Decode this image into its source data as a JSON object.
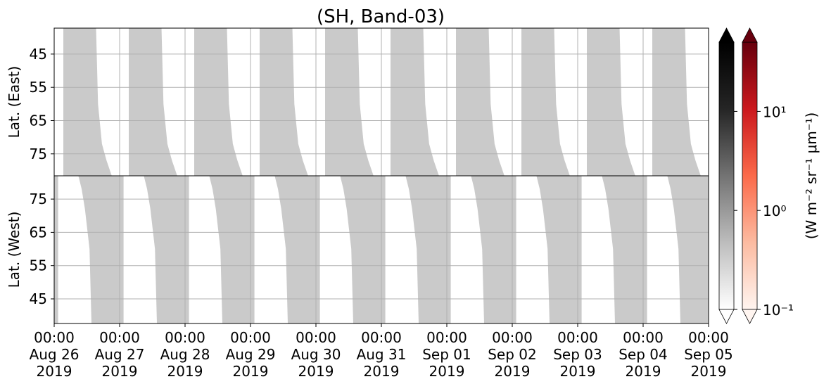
{
  "chart_data": {
    "type": "heatmap",
    "title": "(SH, Band-03)",
    "xlim": [
      0,
      10
    ],
    "xticks": [
      {
        "value": 0,
        "label": "00:00\nAug 26\n2019"
      },
      {
        "value": 1,
        "label": "00:00\nAug 27\n2019"
      },
      {
        "value": 2,
        "label": "00:00\nAug 28\n2019"
      },
      {
        "value": 3,
        "label": "00:00\nAug 29\n2019"
      },
      {
        "value": 4,
        "label": "00:00\nAug 30\n2019"
      },
      {
        "value": 5,
        "label": "00:00\nAug 31\n2019"
      },
      {
        "value": 6,
        "label": "00:00\nSep 01\n2019"
      },
      {
        "value": 7,
        "label": "00:00\nSep 02\n2019"
      },
      {
        "value": 8,
        "label": "00:00\nSep 03\n2019"
      },
      {
        "value": 9,
        "label": "00:00\nSep 04\n2019"
      },
      {
        "value": 10,
        "label": "00:00\nSep 05\n2019"
      }
    ],
    "grid": true,
    "panels": [
      {
        "ylabel": "Lat. (East)",
        "ylim": [
          37.2,
          81.6
        ],
        "yticks": [
          45,
          55,
          65,
          75
        ],
        "color": "#cacaca",
        "lat": [
          37.2,
          60,
          72,
          77,
          81.6
        ],
        "swaths": [
          {
            "left": [
              0.14,
              0.14,
              0.14,
              0.14,
              0.14
            ],
            "right": [
              0.64,
              0.67,
              0.73,
              0.8,
              0.88
            ]
          },
          {
            "left": [
              1.14,
              1.14,
              1.14,
              1.14,
              1.14
            ],
            "right": [
              1.64,
              1.67,
              1.73,
              1.8,
              1.88
            ]
          },
          {
            "left": [
              2.14,
              2.14,
              2.14,
              2.14,
              2.14
            ],
            "right": [
              2.64,
              2.67,
              2.73,
              2.8,
              2.88
            ]
          },
          {
            "left": [
              3.14,
              3.14,
              3.14,
              3.14,
              3.14
            ],
            "right": [
              3.64,
              3.67,
              3.73,
              3.8,
              3.88
            ]
          },
          {
            "left": [
              4.14,
              4.14,
              4.14,
              4.14,
              4.14
            ],
            "right": [
              4.64,
              4.67,
              4.73,
              4.8,
              4.88
            ]
          },
          {
            "left": [
              5.14,
              5.14,
              5.14,
              5.14,
              5.14
            ],
            "right": [
              5.64,
              5.67,
              5.73,
              5.8,
              5.88
            ]
          },
          {
            "left": [
              6.14,
              6.14,
              6.14,
              6.14,
              6.14
            ],
            "right": [
              6.64,
              6.67,
              6.73,
              6.8,
              6.88
            ]
          },
          {
            "left": [
              7.14,
              7.14,
              7.14,
              7.14,
              7.14
            ],
            "right": [
              7.64,
              7.67,
              7.73,
              7.8,
              7.88
            ]
          },
          {
            "left": [
              8.14,
              8.14,
              8.14,
              8.14,
              8.14
            ],
            "right": [
              8.64,
              8.67,
              8.73,
              8.8,
              8.88
            ]
          },
          {
            "left": [
              9.14,
              9.14,
              9.14,
              9.14,
              9.14
            ],
            "right": [
              9.64,
              9.67,
              9.73,
              9.8,
              9.88
            ]
          }
        ]
      },
      {
        "ylabel": "Lat. (West)",
        "ylim": [
          82,
          37.6
        ],
        "yticks": [
          75,
          65,
          55,
          45
        ],
        "color": "#cacaca",
        "lat": [
          82,
          78,
          72,
          60,
          37.6
        ],
        "swaths": [
          {
            "left": [
              -0.63,
              -0.58,
              -0.53,
              -0.46,
              -0.43
            ],
            "right": [
              0.06,
              0.06,
              0.06,
              0.06,
              0.06
            ]
          },
          {
            "left": [
              0.37,
              0.42,
              0.47,
              0.54,
              0.57
            ],
            "right": [
              1.06,
              1.06,
              1.06,
              1.06,
              1.06
            ]
          },
          {
            "left": [
              1.37,
              1.42,
              1.47,
              1.54,
              1.57
            ],
            "right": [
              2.06,
              2.06,
              2.06,
              2.06,
              2.06
            ]
          },
          {
            "left": [
              2.37,
              2.42,
              2.47,
              2.54,
              2.57
            ],
            "right": [
              3.06,
              3.06,
              3.06,
              3.06,
              3.06
            ]
          },
          {
            "left": [
              3.37,
              3.42,
              3.47,
              3.54,
              3.57
            ],
            "right": [
              4.06,
              4.06,
              4.06,
              4.06,
              4.06
            ]
          },
          {
            "left": [
              4.37,
              4.42,
              4.47,
              4.54,
              4.57
            ],
            "right": [
              5.06,
              5.06,
              5.06,
              5.06,
              5.06
            ]
          },
          {
            "left": [
              5.37,
              5.42,
              5.47,
              5.54,
              5.57
            ],
            "right": [
              6.06,
              6.06,
              6.06,
              6.06,
              6.06
            ]
          },
          {
            "left": [
              6.37,
              6.42,
              6.47,
              6.54,
              6.57
            ],
            "right": [
              7.06,
              7.06,
              7.06,
              7.06,
              7.06
            ]
          },
          {
            "left": [
              7.37,
              7.42,
              7.47,
              7.54,
              7.57
            ],
            "right": [
              8.06,
              8.06,
              8.06,
              8.06,
              8.06
            ]
          },
          {
            "left": [
              8.37,
              8.42,
              8.47,
              8.54,
              8.57
            ],
            "right": [
              9.06,
              9.06,
              9.06,
              9.06,
              9.06
            ]
          },
          {
            "left": [
              9.37,
              9.42,
              9.47,
              9.54,
              9.57
            ],
            "right": [
              10.06,
              10.06,
              10.06,
              10.06,
              10.06
            ]
          }
        ]
      }
    ],
    "colorbar": {
      "label": "(W m⁻² sr⁻¹ μm⁻¹)",
      "log": true,
      "clim": [
        0.1,
        50
      ],
      "ticks": [
        {
          "value": 0.1,
          "label": "10⁻¹"
        },
        {
          "value": 1,
          "label": "10⁰"
        },
        {
          "value": 10,
          "label": "10¹"
        }
      ],
      "colormaps": [
        [
          "#ffffff",
          "#bdbdbd",
          "#737373",
          "#252525",
          "#000000"
        ],
        [
          "#fff5f0",
          "#fcbba1",
          "#fb6a4a",
          "#cb181d",
          "#67000d"
        ]
      ]
    }
  }
}
